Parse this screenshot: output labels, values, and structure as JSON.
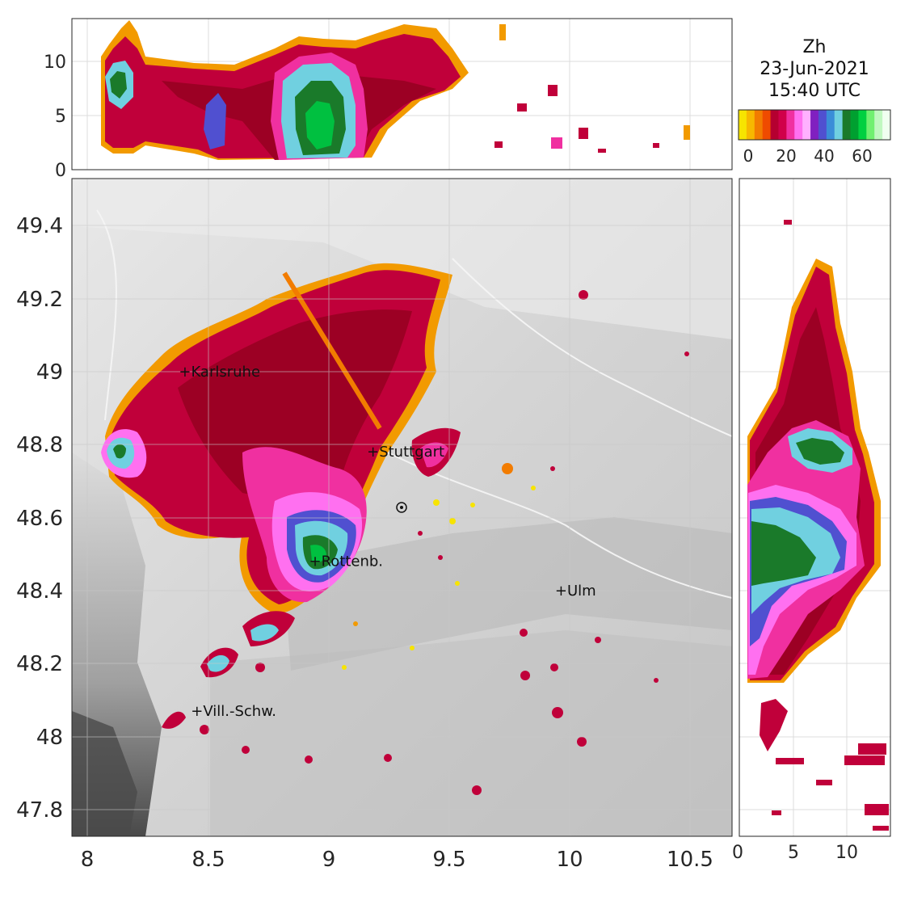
{
  "title": {
    "variable": "Zh",
    "date": "23-Jun-2021",
    "time": "15:40 UTC"
  },
  "colorbar": {
    "tick_labels": [
      "0",
      "20",
      "40",
      "60"
    ],
    "colors": [
      "#f7e400",
      "#f7b800",
      "#f27c00",
      "#ef4b00",
      "#b50030",
      "#d0004a",
      "#f030a0",
      "#ff70f0",
      "#ffb0ff",
      "#8020c0",
      "#5050d0",
      "#3a8ed8",
      "#70d0e0",
      "#1a7a2a",
      "#00a030",
      "#00d040",
      "#70f070",
      "#c0f8c0",
      "#f0fff0"
    ]
  },
  "main_map": {
    "x_ticks": [
      "8",
      "8.5",
      "9",
      "9.5",
      "10",
      "10.5"
    ],
    "y_ticks": [
      "49.4",
      "49.2",
      "49",
      "48.8",
      "48.6",
      "48.4",
      "48.2",
      "48",
      "47.8"
    ],
    "cities": [
      {
        "name": "Karlsruhe",
        "lon": 8.4,
        "lat": 49.0
      },
      {
        "name": "Stuttgart",
        "lon": 9.18,
        "lat": 48.78
      },
      {
        "name": "Rottenb.",
        "lon": 8.94,
        "lat": 48.48
      },
      {
        "name": "Ulm",
        "lon": 9.96,
        "lat": 48.4
      },
      {
        "name": "Vill.-Schw.",
        "lon": 8.45,
        "lat": 48.07
      }
    ],
    "radar_site": {
      "lon": 9.3,
      "lat": 48.63
    }
  },
  "top_panel": {
    "y_ticks": [
      "0",
      "5",
      "10"
    ]
  },
  "right_panel": {
    "x_ticks": [
      "0",
      "5",
      "10"
    ]
  }
}
